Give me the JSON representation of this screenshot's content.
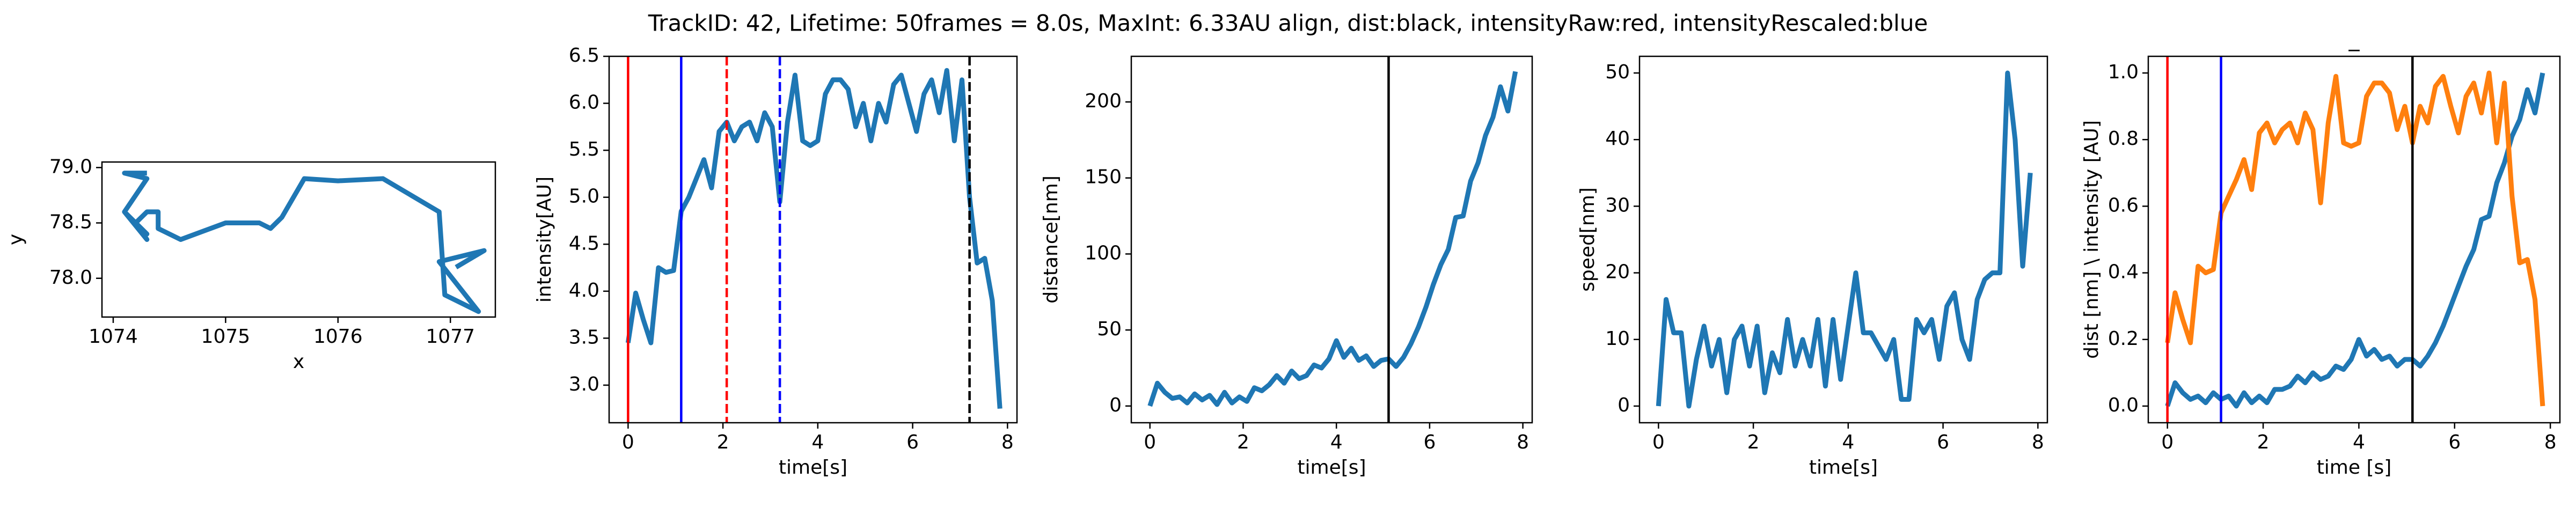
{
  "title": "TrackID: 42, Lifetime: 50frames = 8.0s, MaxInt: 6.33AU align, dist:black, intensityRaw:red, intensityRescaled:blue",
  "chart_data": [
    {
      "type": "line",
      "xlabel": "x",
      "ylabel": "y",
      "color": "#1f77b4",
      "x": [
        1074.3,
        1074.1,
        1074.3,
        1074.1,
        1074.2,
        1074.3,
        1074.1,
        1074.3,
        1074.2,
        1074.3,
        1074.4,
        1074.4,
        1074.6,
        1075.0,
        1075.3,
        1075.4,
        1075.5,
        1075.7,
        1076.0,
        1076.4,
        1076.9,
        1076.95,
        1077.25,
        1076.9,
        1077.3,
        1077.05
      ],
      "values": [
        78.95,
        78.95,
        78.9,
        78.6,
        78.5,
        78.4,
        78.6,
        78.35,
        78.5,
        78.6,
        78.6,
        78.45,
        78.35,
        78.5,
        78.5,
        78.45,
        78.55,
        78.9,
        78.88,
        78.9,
        78.6,
        77.85,
        77.7,
        78.15,
        78.25,
        78.1
      ],
      "xlim": [
        1073.9,
        1077.4
      ],
      "xticks": [
        1074,
        1075,
        1076,
        1077
      ],
      "ylim": [
        77.65,
        79.05
      ],
      "yticks": [
        {
          "value": 78,
          "label": "78.0"
        },
        {
          "value": 78.5,
          "label": "78.5"
        },
        {
          "value": 79,
          "label": "79.0"
        }
      ]
    },
    {
      "type": "line",
      "xlabel": "time[s]",
      "ylabel": "intensity[AU]",
      "color": "#1f77b4",
      "x": [
        0,
        0.16,
        0.32,
        0.48,
        0.64,
        0.8,
        0.96,
        1.12,
        1.28,
        1.44,
        1.6,
        1.76,
        1.92,
        2.08,
        2.24,
        2.4,
        2.56,
        2.72,
        2.88,
        3.04,
        3.2,
        3.36,
        3.52,
        3.68,
        3.84,
        4.0,
        4.16,
        4.32,
        4.48,
        4.64,
        4.8,
        4.96,
        5.12,
        5.28,
        5.44,
        5.6,
        5.76,
        5.92,
        6.08,
        6.24,
        6.4,
        6.56,
        6.72,
        6.88,
        7.04,
        7.2,
        7.36,
        7.52,
        7.68,
        7.84
      ],
      "values": [
        3.45,
        3.98,
        3.7,
        3.45,
        4.25,
        4.2,
        4.22,
        4.85,
        5.0,
        5.2,
        5.4,
        5.1,
        5.7,
        5.8,
        5.6,
        5.75,
        5.8,
        5.6,
        5.9,
        5.75,
        4.95,
        5.8,
        6.3,
        5.6,
        5.55,
        5.6,
        6.1,
        6.25,
        6.25,
        6.15,
        5.75,
        6.0,
        5.6,
        6.0,
        5.8,
        6.2,
        6.3,
        6.0,
        5.7,
        6.1,
        6.25,
        5.9,
        6.35,
        5.6,
        6.25,
        5.0,
        4.3,
        4.35,
        3.9,
        2.75
      ],
      "xlim": [
        -0.4,
        8.2
      ],
      "xticks": [
        0,
        2,
        4,
        6,
        8
      ],
      "ylim": [
        2.6,
        6.5
      ],
      "yticks": [
        {
          "value": 3,
          "label": "3.0"
        },
        {
          "value": 3.5,
          "label": "3.5"
        },
        {
          "value": 4,
          "label": "4.0"
        },
        {
          "value": 4.5,
          "label": "4.5"
        },
        {
          "value": 5,
          "label": "5.0"
        },
        {
          "value": 5.5,
          "label": "5.5"
        },
        {
          "value": 6,
          "label": "6.0"
        },
        {
          "value": 6.5,
          "label": "6.5"
        }
      ],
      "vlines": [
        {
          "x": 0,
          "color": "red",
          "style": "solid"
        },
        {
          "x": 1.12,
          "color": "blue",
          "style": "solid"
        },
        {
          "x": 2.08,
          "color": "red",
          "style": "dashed"
        },
        {
          "x": 3.2,
          "color": "blue",
          "style": "dashed"
        },
        {
          "x": 7.2,
          "color": "black",
          "style": "dashed"
        }
      ]
    },
    {
      "type": "line",
      "xlabel": "time[s]",
      "ylabel": "distance[nm]",
      "color": "#1f77b4",
      "x": [
        0,
        0.16,
        0.32,
        0.48,
        0.64,
        0.8,
        0.96,
        1.12,
        1.28,
        1.44,
        1.6,
        1.76,
        1.92,
        2.08,
        2.24,
        2.4,
        2.56,
        2.72,
        2.88,
        3.04,
        3.2,
        3.36,
        3.52,
        3.68,
        3.84,
        4.0,
        4.16,
        4.32,
        4.48,
        4.64,
        4.8,
        4.96,
        5.12,
        5.28,
        5.44,
        5.6,
        5.76,
        5.92,
        6.08,
        6.24,
        6.4,
        6.56,
        6.72,
        6.88,
        7.04,
        7.2,
        7.36,
        7.52,
        7.68,
        7.84
      ],
      "values": [
        0,
        15,
        9,
        5,
        6,
        2,
        8,
        4,
        7,
        1,
        9,
        2,
        6,
        3,
        12,
        10,
        14,
        20,
        15,
        23,
        18,
        20,
        27,
        25,
        31,
        43,
        32,
        38,
        30,
        33,
        26,
        30,
        31,
        26,
        32,
        41,
        52,
        65,
        80,
        93,
        103,
        124,
        125,
        148,
        160,
        178,
        190,
        210,
        194,
        220
      ],
      "xlim": [
        -0.4,
        8.2
      ],
      "xticks": [
        0,
        2,
        4,
        6,
        8
      ],
      "ylim": [
        -11,
        230
      ],
      "yticks": [
        0,
        50,
        100,
        150,
        200
      ],
      "vlines": [
        {
          "x": 5.12,
          "color": "black",
          "style": "solid"
        }
      ]
    },
    {
      "type": "line",
      "xlabel": "time[s]",
      "ylabel": "speed[nm]",
      "color": "#1f77b4",
      "x": [
        0,
        0.16,
        0.32,
        0.48,
        0.64,
        0.8,
        0.96,
        1.12,
        1.28,
        1.44,
        1.6,
        1.76,
        1.92,
        2.08,
        2.24,
        2.4,
        2.56,
        2.72,
        2.88,
        3.04,
        3.2,
        3.36,
        3.52,
        3.68,
        3.84,
        4.0,
        4.16,
        4.32,
        4.48,
        4.64,
        4.8,
        4.96,
        5.12,
        5.28,
        5.44,
        5.6,
        5.76,
        5.92,
        6.08,
        6.24,
        6.4,
        6.56,
        6.72,
        6.88,
        7.04,
        7.2,
        7.36,
        7.52,
        7.68,
        7.84
      ],
      "values": [
        0,
        16,
        11,
        11,
        0,
        7,
        12,
        6,
        10,
        2,
        10,
        12,
        6,
        12,
        2,
        8,
        5,
        13,
        6,
        10,
        6,
        13,
        3,
        13,
        4,
        12,
        20,
        11,
        11,
        9,
        7,
        10,
        1,
        1,
        13,
        11,
        13,
        7,
        15,
        17,
        10,
        7,
        16,
        19,
        20,
        20,
        50,
        40,
        21,
        35
      ],
      "xlim": [
        -0.4,
        8.2
      ],
      "xticks": [
        0,
        2,
        4,
        6,
        8
      ],
      "ylim": [
        -2.5,
        52.5
      ],
      "yticks": [
        0,
        10,
        20,
        30,
        40,
        50
      ]
    },
    {
      "type": "line",
      "title": "_",
      "xlabel": "time [s]",
      "ylabel": "dist [nm] \\ intensity [AU]",
      "x": [
        0,
        0.16,
        0.32,
        0.48,
        0.64,
        0.8,
        0.96,
        1.12,
        1.28,
        1.44,
        1.6,
        1.76,
        1.92,
        2.08,
        2.24,
        2.4,
        2.56,
        2.72,
        2.88,
        3.04,
        3.2,
        3.36,
        3.52,
        3.68,
        3.84,
        4.0,
        4.16,
        4.32,
        4.48,
        4.64,
        4.8,
        4.96,
        5.12,
        5.28,
        5.44,
        5.6,
        5.76,
        5.92,
        6.08,
        6.24,
        6.4,
        6.56,
        6.72,
        6.88,
        7.04,
        7.2,
        7.36,
        7.52,
        7.68,
        7.84
      ],
      "series": [
        {
          "color": "#1f77b4",
          "values": [
            0,
            0.07,
            0.04,
            0.02,
            0.03,
            0.01,
            0.04,
            0.02,
            0.03,
            0.0,
            0.04,
            0.01,
            0.03,
            0.01,
            0.05,
            0.05,
            0.06,
            0.09,
            0.07,
            0.1,
            0.08,
            0.09,
            0.12,
            0.11,
            0.14,
            0.2,
            0.15,
            0.17,
            0.14,
            0.15,
            0.12,
            0.14,
            0.14,
            0.12,
            0.15,
            0.19,
            0.24,
            0.3,
            0.36,
            0.42,
            0.47,
            0.56,
            0.57,
            0.67,
            0.73,
            0.81,
            0.86,
            0.95,
            0.88,
            1.0
          ]
        },
        {
          "color": "#ff7f0e",
          "values": [
            0.19,
            0.34,
            0.26,
            0.19,
            0.42,
            0.4,
            0.41,
            0.58,
            0.63,
            0.68,
            0.74,
            0.65,
            0.82,
            0.85,
            0.79,
            0.83,
            0.85,
            0.79,
            0.88,
            0.83,
            0.61,
            0.85,
            0.99,
            0.79,
            0.78,
            0.79,
            0.93,
            0.97,
            0.97,
            0.94,
            0.83,
            0.9,
            0.79,
            0.9,
            0.85,
            0.96,
            0.99,
            0.9,
            0.82,
            0.93,
            0.97,
            0.88,
            1.0,
            0.79,
            0.97,
            0.63,
            0.43,
            0.44,
            0.32,
            0.0
          ]
        }
      ],
      "xlim": [
        -0.4,
        8.2
      ],
      "xticks": [
        0,
        2,
        4,
        6,
        8
      ],
      "ylim": [
        -0.05,
        1.05
      ],
      "yticks": [
        {
          "value": 0,
          "label": "0.0"
        },
        {
          "value": 0.2,
          "label": "0.2"
        },
        {
          "value": 0.4,
          "label": "0.4"
        },
        {
          "value": 0.6,
          "label": "0.6"
        },
        {
          "value": 0.8,
          "label": "0.8"
        },
        {
          "value": 1,
          "label": "1.0"
        }
      ],
      "vlines": [
        {
          "x": 0,
          "color": "red",
          "style": "solid"
        },
        {
          "x": 1.12,
          "color": "blue",
          "style": "solid"
        },
        {
          "x": 5.12,
          "color": "black",
          "style": "solid"
        }
      ]
    }
  ]
}
